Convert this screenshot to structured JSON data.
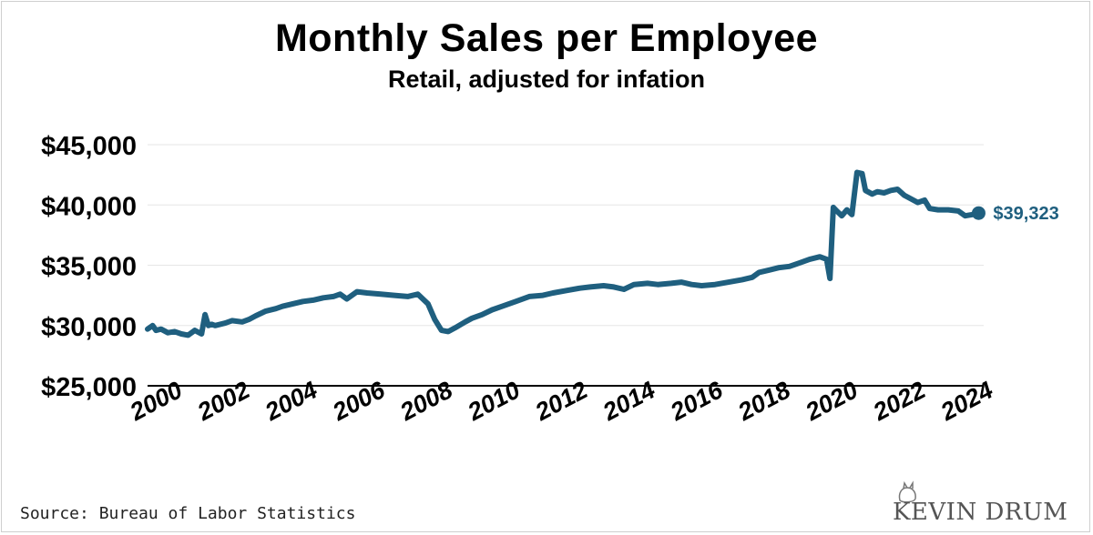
{
  "chart_data": {
    "type": "line",
    "title": "Monthly Sales per Employee",
    "subtitle": "Retail, adjusted for infation",
    "xlabel": "",
    "ylabel": "",
    "xlim": [
      2000,
      2024.75
    ],
    "ylim": [
      25000,
      45000
    ],
    "x_ticks": [
      2000,
      2002,
      2004,
      2006,
      2008,
      2010,
      2012,
      2014,
      2016,
      2018,
      2020,
      2022,
      2024
    ],
    "x_tick_labels": [
      "2000",
      "2002",
      "2004",
      "2006",
      "2008",
      "2010",
      "2012",
      "2014",
      "2016",
      "2018",
      "2020",
      "2022",
      "2024"
    ],
    "y_ticks": [
      25000,
      30000,
      35000,
      40000,
      45000
    ],
    "y_tick_labels": [
      "$25,000",
      "$30,000",
      "$35,000",
      "$40,000",
      "$45,000"
    ],
    "grid": "horizontal",
    "line_color": "#1f5f7f",
    "series": [
      {
        "name": "",
        "x": [
          2000.0,
          2000.15,
          2000.25,
          2000.4,
          2000.6,
          2000.8,
          2001.0,
          2001.2,
          2001.4,
          2001.6,
          2001.7,
          2001.8,
          2001.9,
          2002.0,
          2002.3,
          2002.5,
          2002.8,
          2003.0,
          2003.2,
          2003.5,
          2003.8,
          2004.0,
          2004.3,
          2004.6,
          2004.9,
          2005.2,
          2005.5,
          2005.7,
          2005.9,
          2006.2,
          2006.5,
          2006.9,
          2007.3,
          2007.7,
          2008.0,
          2008.3,
          2008.5,
          2008.7,
          2008.9,
          2009.1,
          2009.4,
          2009.6,
          2009.9,
          2010.2,
          2010.5,
          2010.9,
          2011.3,
          2011.7,
          2012.0,
          2012.4,
          2012.8,
          2013.1,
          2013.5,
          2013.8,
          2014.1,
          2014.4,
          2014.8,
          2015.1,
          2015.5,
          2015.8,
          2016.1,
          2016.4,
          2016.8,
          2017.2,
          2017.6,
          2017.9,
          2018.1,
          2018.4,
          2018.7,
          2019.0,
          2019.3,
          2019.6,
          2019.9,
          2020.1,
          2020.2,
          2020.3,
          2020.4,
          2020.55,
          2020.7,
          2020.85,
          2021.0,
          2021.15,
          2021.25,
          2021.45,
          2021.6,
          2021.8,
          2022.0,
          2022.2,
          2022.4,
          2022.6,
          2022.8,
          2023.0,
          2023.15,
          2023.4,
          2023.7,
          2024.0,
          2024.2,
          2024.4,
          2024.6
        ],
        "values": [
          29700,
          30000,
          29600,
          29700,
          29400,
          29500,
          29300,
          29200,
          29600,
          29300,
          30900,
          30000,
          30100,
          30000,
          30200,
          30400,
          30300,
          30500,
          30800,
          31200,
          31400,
          31600,
          31800,
          32000,
          32100,
          32300,
          32400,
          32600,
          32200,
          32800,
          32700,
          32600,
          32500,
          32400,
          32600,
          31800,
          30500,
          29600,
          29500,
          29800,
          30300,
          30600,
          30900,
          31300,
          31600,
          32000,
          32400,
          32500,
          32700,
          32900,
          33100,
          33200,
          33300,
          33200,
          33000,
          33400,
          33500,
          33400,
          33500,
          33600,
          33400,
          33300,
          33400,
          33600,
          33800,
          34000,
          34400,
          34600,
          34800,
          34900,
          35200,
          35500,
          35700,
          35500,
          33900,
          39800,
          39500,
          39100,
          39600,
          39200,
          42700,
          42600,
          41200,
          40900,
          41100,
          41000,
          41200,
          41300,
          40800,
          40500,
          40200,
          40400,
          39700,
          39600,
          39600,
          39500,
          39100,
          39200,
          39323
        ]
      }
    ],
    "end_label": "$39,323"
  },
  "source": "Source: Bureau of Labor Statistics",
  "brand": "KEVIN DRUM"
}
